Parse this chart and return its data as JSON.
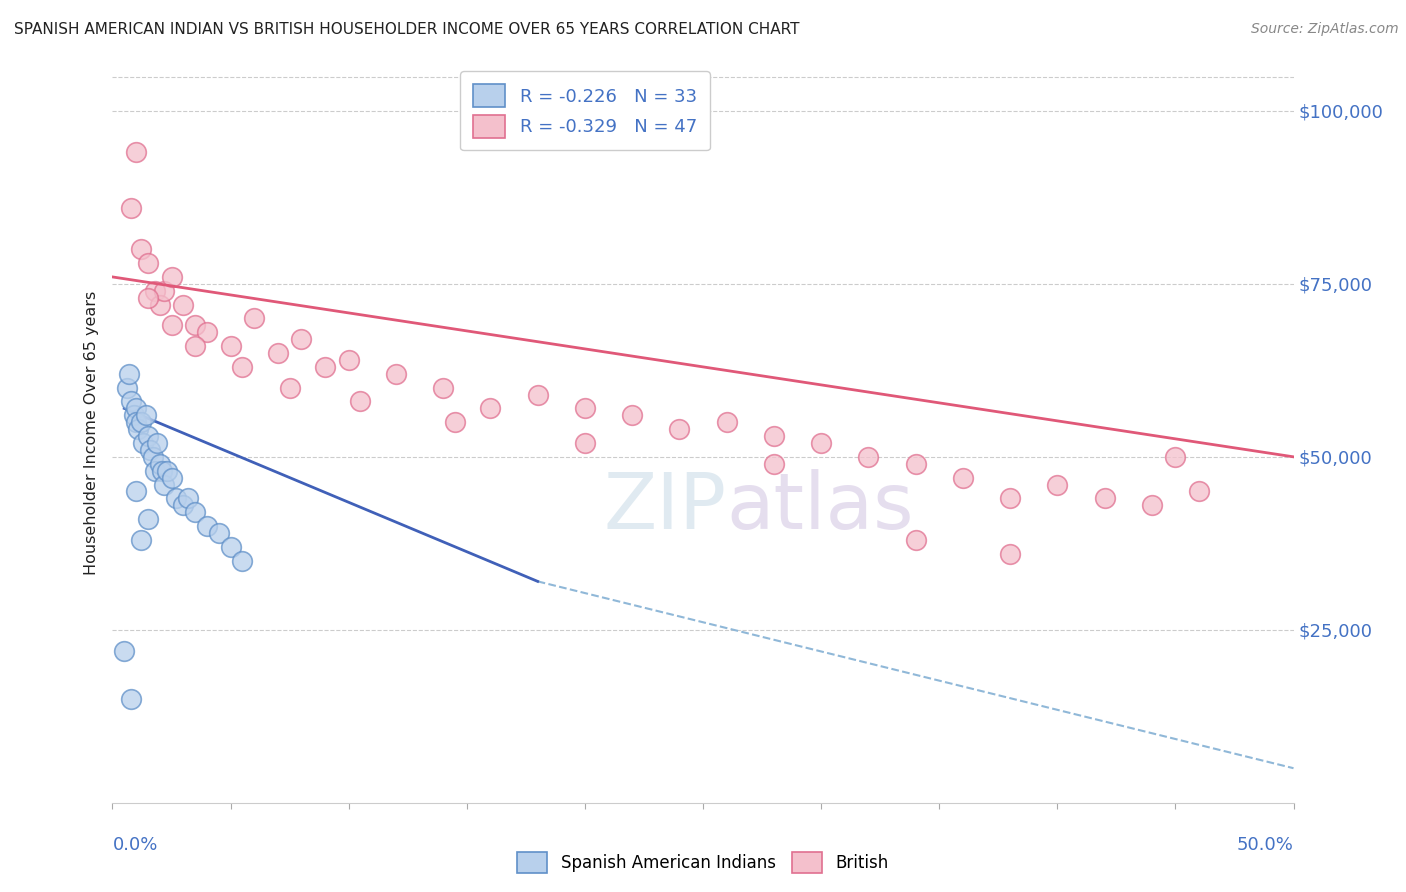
{
  "title": "SPANISH AMERICAN INDIAN VS BRITISH HOUSEHOLDER INCOME OVER 65 YEARS CORRELATION CHART",
  "source": "Source: ZipAtlas.com",
  "ylabel": "Householder Income Over 65 years",
  "xlim": [
    0.0,
    50.0
  ],
  "ylim": [
    0,
    107000
  ],
  "yticks": [
    25000,
    50000,
    75000,
    100000
  ],
  "ytick_labels": [
    "$25,000",
    "$50,000",
    "$75,000",
    "$100,000"
  ],
  "xtick_label_left": "0.0%",
  "xtick_label_right": "50.0%",
  "legend_r1": "R = -0.226",
  "legend_n1": "N = 33",
  "legend_r2": "R = -0.329",
  "legend_n2": "N = 47",
  "legend1_label": "Spanish American Indians",
  "legend2_label": "British",
  "blue_fill": "#b8d0ec",
  "pink_fill": "#f4c0cc",
  "blue_edge": "#6090c8",
  "pink_edge": "#e07090",
  "line_blue_color": "#4060b8",
  "line_pink_color": "#e05878",
  "line_dashed_color": "#90b8d8",
  "watermark_zip": "ZIP",
  "watermark_atlas": "atlas",
  "watermark_color_zip": "#c8d8ec",
  "watermark_color_atlas": "#d8c8e8",
  "title_color": "#222222",
  "source_color": "#888888",
  "ylabel_color": "#222222",
  "ytick_color": "#4472c4",
  "xtick_label_color": "#4472c4",
  "legend_text_color": "#4472c4",
  "grid_color": "#cccccc",
  "scatter_blue_x": [
    0.6,
    0.7,
    0.8,
    0.9,
    1.0,
    1.0,
    1.1,
    1.2,
    1.3,
    1.4,
    1.5,
    1.6,
    1.7,
    1.8,
    1.9,
    2.0,
    2.1,
    2.2,
    2.3,
    2.5,
    2.7,
    3.0,
    3.2,
    3.5,
    4.0,
    4.5,
    5.0,
    5.5,
    0.5,
    0.8,
    1.2,
    1.0,
    1.5
  ],
  "scatter_blue_y": [
    60000,
    62000,
    58000,
    56000,
    57000,
    55000,
    54000,
    55000,
    52000,
    56000,
    53000,
    51000,
    50000,
    48000,
    52000,
    49000,
    48000,
    46000,
    48000,
    47000,
    44000,
    43000,
    44000,
    42000,
    40000,
    39000,
    37000,
    35000,
    22000,
    15000,
    38000,
    45000,
    41000
  ],
  "scatter_pink_x": [
    0.8,
    1.0,
    1.2,
    1.5,
    1.8,
    2.0,
    2.2,
    2.5,
    3.0,
    3.5,
    4.0,
    5.0,
    6.0,
    7.0,
    8.0,
    9.0,
    10.0,
    12.0,
    14.0,
    16.0,
    18.0,
    20.0,
    22.0,
    24.0,
    26.0,
    28.0,
    30.0,
    32.0,
    34.0,
    36.0,
    38.0,
    40.0,
    42.0,
    44.0,
    46.0,
    1.5,
    2.5,
    3.5,
    5.5,
    7.5,
    10.5,
    14.5,
    20.0,
    28.0,
    34.0,
    38.0,
    45.0
  ],
  "scatter_pink_y": [
    86000,
    94000,
    80000,
    78000,
    74000,
    72000,
    74000,
    76000,
    72000,
    69000,
    68000,
    66000,
    70000,
    65000,
    67000,
    63000,
    64000,
    62000,
    60000,
    57000,
    59000,
    57000,
    56000,
    54000,
    55000,
    53000,
    52000,
    50000,
    49000,
    47000,
    44000,
    46000,
    44000,
    43000,
    45000,
    73000,
    69000,
    66000,
    63000,
    60000,
    58000,
    55000,
    52000,
    49000,
    38000,
    36000,
    50000
  ],
  "blue_line_x": [
    0.5,
    18.0
  ],
  "blue_line_y": [
    57000,
    32000
  ],
  "pink_line_x": [
    0.0,
    50.0
  ],
  "pink_line_y": [
    76000,
    50000
  ],
  "dashed_line_x": [
    18.0,
    50.0
  ],
  "dashed_line_y": [
    32000,
    5000
  ]
}
